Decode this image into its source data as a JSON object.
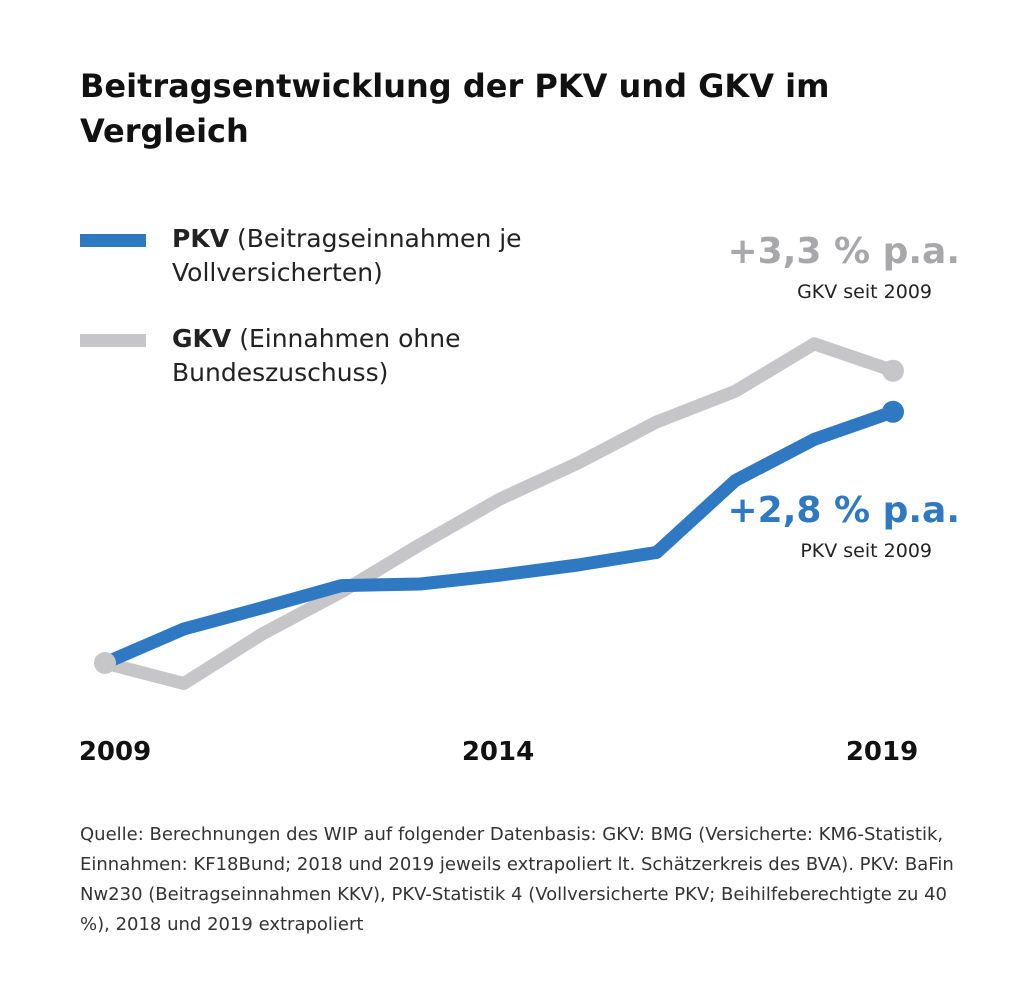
{
  "chart_data": {
    "type": "line",
    "title": "Beitragsentwicklung der PKV und GKV im Vergleich",
    "x": [
      2009,
      2010,
      2011,
      2012,
      2013,
      2014,
      2015,
      2016,
      2017,
      2018,
      2019
    ],
    "x_tick_labels": [
      "2009",
      "2014",
      "2019"
    ],
    "index_base_year": 2009,
    "series": [
      {
        "name": "PKV",
        "description": "(Beitragseinnahmen je Vollversicherten)",
        "color": "#2f79c2",
        "values": [
          100,
          104.3,
          107.0,
          109.8,
          110.0,
          111.1,
          112.4,
          114.0,
          123.1,
          128.3,
          131.8
        ]
      },
      {
        "name": "GKV",
        "description": "(Einnahmen ohne Bundeszuschuss)",
        "color": "#c6c6c8",
        "values": [
          100,
          97.4,
          103.7,
          109.0,
          115.0,
          120.7,
          125.3,
          130.5,
          134.4,
          140.4,
          137.0
        ]
      }
    ],
    "annotations": [
      {
        "series": "GKV",
        "value": "+3,3 % p.a.",
        "caption": "GKV seit 2009",
        "color": "#a8a8aa"
      },
      {
        "series": "PKV",
        "value": "+2,8 % p.a.",
        "caption": "PKV seit 2009",
        "color": "#2f79c2"
      }
    ],
    "grid": false,
    "legend_position": "top-left"
  },
  "source_text": "Quelle: Berechnungen des WIP auf folgender Datenbasis: GKV: BMG (Versicherte: KM6-Statistik, Einnahmen: KF18Bund; 2018 und 2019 jeweils extrapoliert lt. Schätzerkreis des BVA). PKV: BaFin Nw230 (Beitragseinnahmen KKV), PKV-Statistik 4 (Vollversicherte PKV; Beihilfeberechtigte zu 40 %), 2018 und 2019 extrapoliert"
}
